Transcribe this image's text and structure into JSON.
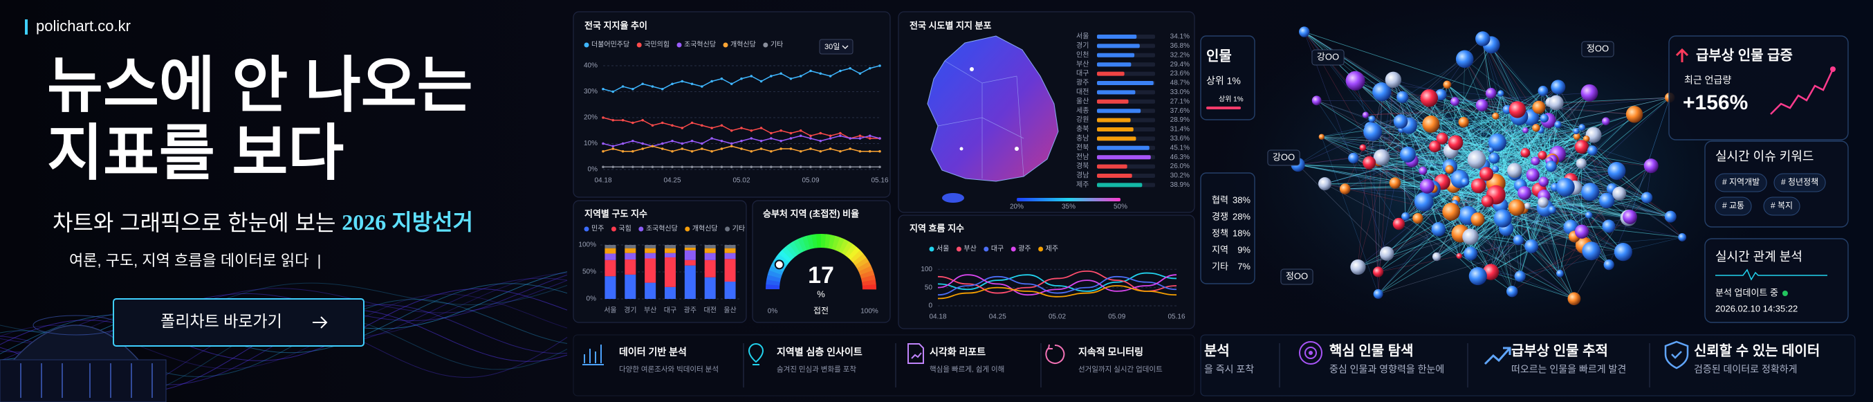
{
  "header": {
    "site": "polichart.co.kr"
  },
  "hero": {
    "title": [
      "뉴스에 안 나오는",
      "지표를 보다"
    ],
    "subtitle": "차트와 그래픽으로 한눈에 보는",
    "highlight": "2026 지방선거",
    "tagline": "여론, 구도, 지역 흐름을 데이터로 읽다  |",
    "button": "폴리차트 바로가기"
  },
  "trend": {
    "type": "line",
    "title": "전국 지지율 추이",
    "period": "30일",
    "categories": [
      "04.18",
      null,
      null,
      null,
      null,
      null,
      null,
      "04.25",
      null,
      null,
      null,
      null,
      null,
      null,
      "05.02",
      null,
      null,
      null,
      null,
      null,
      null,
      "05.09",
      null,
      null,
      null,
      null,
      null,
      null,
      "05.16"
    ],
    "series": [
      {
        "name": "더불어민주당",
        "color": "#3fb6ff",
        "values": [
          31,
          30,
          32,
          31,
          33,
          32,
          31,
          33,
          34,
          33,
          32,
          34,
          35,
          33,
          35,
          36,
          34,
          36,
          37,
          35,
          36,
          38,
          37,
          36,
          38,
          39,
          37,
          39,
          40
        ]
      },
      {
        "name": "국민의힘",
        "color": "#ff4b4b",
        "values": [
          20,
          19,
          19,
          18,
          19,
          17,
          18,
          17,
          16,
          18,
          17,
          16,
          17,
          15,
          16,
          15,
          16,
          14,
          15,
          14,
          15,
          13,
          14,
          13,
          14,
          12,
          13,
          12,
          12
        ]
      },
      {
        "name": "조국혁신당",
        "color": "#9b5cff",
        "values": [
          10,
          9,
          10,
          11,
          10,
          9,
          10,
          11,
          10,
          11,
          10,
          12,
          11,
          10,
          11,
          12,
          11,
          12,
          11,
          12,
          13,
          12,
          11,
          12,
          13,
          12,
          12,
          13,
          12
        ]
      },
      {
        "name": "개혁신당",
        "color": "#ffa534",
        "values": [
          7,
          8,
          7,
          7,
          8,
          9,
          8,
          7,
          8,
          7,
          8,
          7,
          8,
          9,
          8,
          7,
          8,
          7,
          8,
          8,
          7,
          8,
          7,
          8,
          7,
          8,
          7,
          7,
          7
        ]
      },
      {
        "name": "기타",
        "color": "#8a8f9c",
        "values": [
          1,
          1,
          1,
          1,
          1,
          1,
          1,
          1,
          1,
          1,
          1,
          1,
          1,
          1,
          1,
          1,
          1,
          1,
          1,
          1,
          1,
          1,
          1,
          1,
          1,
          1,
          1,
          1,
          1
        ]
      }
    ],
    "ylim": [
      0,
      40
    ],
    "yticks": [
      {
        "value": 0,
        "label": "0%"
      },
      {
        "value": 10,
        "label": "10%"
      },
      {
        "value": 20,
        "label": "20%"
      },
      {
        "value": 30,
        "label": "30%"
      },
      {
        "value": 40,
        "label": "40%"
      }
    ],
    "grid": true
  },
  "regions": {
    "type": "bar",
    "title": "전국 시도별 지지 분포",
    "categories": [
      "서울",
      "경기",
      "인천",
      "부산",
      "대구",
      "광주",
      "대전",
      "울산",
      "세종",
      "강원",
      "충북",
      "충남",
      "전북",
      "전남",
      "경북",
      "경남",
      "제주"
    ],
    "values": [
      34.1,
      36.8,
      32.2,
      29.4,
      23.6,
      48.7,
      33.0,
      27.1,
      37.6,
      28.9,
      31.4,
      33.6,
      45.1,
      46.3,
      26.0,
      30.2,
      38.9
    ],
    "value_labels": [
      "34.1%",
      "36.8%",
      "32.2%",
      "29.4%",
      "23.6%",
      "48.7%",
      "33.0%",
      "27.1%",
      "37.6%",
      "28.9%",
      "31.4%",
      "33.6%",
      "45.1%",
      "46.3%",
      "26.0%",
      "30.2%",
      "38.9%"
    ],
    "colors": [
      "#3b82f6",
      "#3b82f6",
      "#3b82f6",
      "#3b82f6",
      "#ef4444",
      "#3b82f6",
      "#3b82f6",
      "#ef4444",
      "#3b82f6",
      "#f59e0b",
      "#f59e0b",
      "#f59e0b",
      "#3b82f6",
      "#a855f7",
      "#ef4444",
      "#ef4444",
      "#14b8a6"
    ],
    "scale_ticks": [
      {
        "value": 20,
        "label": "20%"
      },
      {
        "value": 35,
        "label": "35%"
      },
      {
        "value": 50,
        "label": "50%"
      }
    ]
  },
  "composition": {
    "type": "stacked-bar",
    "title": "지역별 구도 지수",
    "categories": [
      "서울",
      "경기",
      "부산",
      "대구",
      "광주",
      "대전",
      "울산"
    ],
    "series": [
      {
        "name": "민주",
        "color": "#3b6cff",
        "values": [
          42,
          45,
          30,
          22,
          62,
          40,
          32
        ]
      },
      {
        "name": "국힘",
        "color": "#ff3b4e",
        "values": [
          30,
          28,
          45,
          55,
          10,
          32,
          42
        ]
      },
      {
        "name": "조국혁신당",
        "color": "#8b5cf6",
        "values": [
          12,
          12,
          10,
          8,
          18,
          13,
          11
        ]
      },
      {
        "name": "개혁신당",
        "color": "#f59e0b",
        "values": [
          10,
          9,
          9,
          9,
          5,
          9,
          9
        ]
      },
      {
        "name": "기타",
        "color": "#6b7280",
        "values": [
          6,
          6,
          6,
          6,
          5,
          6,
          6
        ]
      }
    ],
    "ylim": [
      0,
      100
    ],
    "yticks": [
      {
        "value": 0,
        "label": "0%"
      },
      {
        "value": 50,
        "label": "50%"
      },
      {
        "value": 100,
        "label": "100%"
      }
    ]
  },
  "gauge": {
    "type": "gauge",
    "title": "승부처 지역 (초접전) 비율",
    "value": 17,
    "unit": "%",
    "caption": "접전",
    "range": [
      {
        "value": 0,
        "label": "0%"
      },
      {
        "value": 100,
        "label": "100%"
      }
    ]
  },
  "flow": {
    "type": "line",
    "title": "지역 흐름 지수",
    "categories": [
      "04.18",
      null,
      "04.25",
      null,
      "05.02",
      null,
      "05.09",
      null,
      "05.16"
    ],
    "series": [
      {
        "name": "서울",
        "color": "#22d3ee",
        "values": [
          60,
          45,
          70,
          85,
          55,
          40,
          65,
          90,
          75
        ]
      },
      {
        "name": "부산",
        "color": "#ff4d6d",
        "values": [
          80,
          60,
          35,
          50,
          75,
          95,
          70,
          40,
          55
        ]
      },
      {
        "name": "대구",
        "color": "#4c6ef5",
        "values": [
          30,
          55,
          80,
          60,
          35,
          50,
          80,
          65,
          45
        ]
      },
      {
        "name": "광주",
        "color": "#d946ef",
        "values": [
          50,
          85,
          60,
          30,
          45,
          70,
          40,
          55,
          85
        ]
      },
      {
        "name": "제주",
        "color": "#f59f00",
        "values": [
          20,
          35,
          50,
          40,
          25,
          35,
          55,
          40,
          30
        ]
      }
    ],
    "ylim": [
      0,
      110
    ],
    "yticks": [
      0,
      50,
      100
    ]
  },
  "features": [
    {
      "title": "데이터 기반 분석",
      "text": "다양한 여론조사와 빅데이터 분석"
    },
    {
      "title": "지역별 심층 인사이트",
      "text": "숨겨진 민심과 변화를 포착"
    },
    {
      "title": "시각화 리포트",
      "text": "핵심을 빠르게, 쉽게 이해"
    },
    {
      "title": "지속적 모니터링",
      "text": "선거일까지 실시간 업데이트"
    }
  ],
  "network": {
    "labels": [
      "강OO",
      "정OO",
      "강OO",
      "정OO"
    ],
    "person_panel": {
      "title": "인물",
      "rank": "상위 1%",
      "rank_small": "상위 1%"
    },
    "relations": [
      {
        "label": "협력",
        "value": "38%"
      },
      {
        "label": "경쟁",
        "value": "28%"
      },
      {
        "label": "정책",
        "value": "18%"
      },
      {
        "label": "지역",
        "value": "9%"
      },
      {
        "label": "기타",
        "value": "7%"
      }
    ],
    "rising": {
      "title": "급부상 인물 급증",
      "caption": "최근 언급량",
      "value": "+156%"
    },
    "keywords": {
      "title": "실시간 이슈 키워드",
      "items": [
        "# 지역개발",
        "# 청년정책",
        "# 교통",
        "# 복지"
      ]
    },
    "live": {
      "title": "실시간 관계 분석",
      "status": "분석 업데이트 중",
      "time": "2026.02.10 14:35:22"
    },
    "features": [
      {
        "title": "분석",
        "text": "을 즉시 포착"
      },
      {
        "title": "핵심 인물 탐색",
        "text": "중심 인물과 영향력을 한눈에"
      },
      {
        "title": "급부상 인물 추적",
        "text": "떠오르는 인물을 빠르게 발견"
      },
      {
        "title": "신뢰할 수 있는 데이터",
        "text": "검증된 데이터로 정확하게"
      }
    ]
  }
}
